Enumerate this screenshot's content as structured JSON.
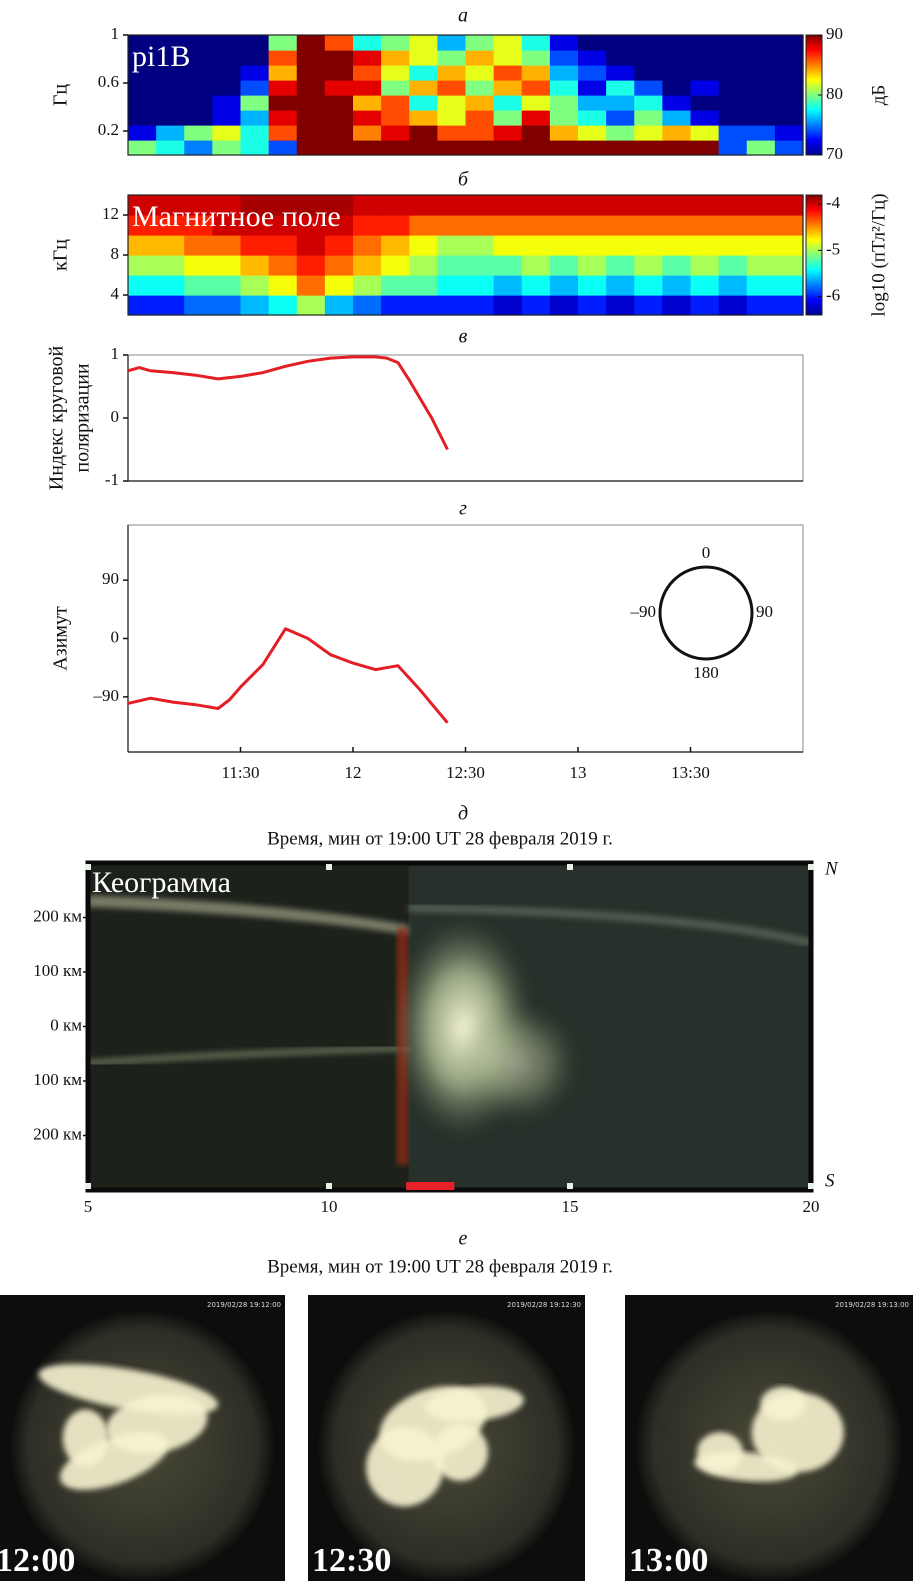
{
  "chart_data": [
    {
      "type": "heatmap",
      "panel_label": "а",
      "annotation": "pi1B",
      "ylabel": "Гц",
      "colorbar_label": "дБ",
      "colormap": "jet",
      "xlim": [
        11,
        14
      ],
      "ylim": [
        0,
        1
      ],
      "yticks": [
        0.2,
        0.6,
        1
      ],
      "clim": [
        70,
        90
      ],
      "cticks": [
        70,
        80,
        90
      ],
      "z": [
        [
          80,
          78,
          75,
          80,
          78,
          74,
          90,
          90,
          90,
          90,
          90,
          90,
          90,
          90,
          90,
          90,
          90,
          90,
          90,
          90,
          90,
          74,
          80,
          74
        ],
        [
          72,
          76,
          80,
          82,
          78,
          86,
          90,
          90,
          85,
          88,
          90,
          86,
          86,
          88,
          90,
          84,
          82,
          80,
          82,
          84,
          82,
          74,
          74,
          72
        ],
        [
          70,
          70,
          70,
          72,
          76,
          88,
          90,
          90,
          88,
          86,
          84,
          82,
          86,
          80,
          88,
          80,
          78,
          74,
          80,
          76,
          72,
          70,
          70,
          70
        ],
        [
          70,
          70,
          70,
          72,
          80,
          90,
          90,
          90,
          84,
          86,
          78,
          82,
          84,
          78,
          82,
          80,
          76,
          76,
          78,
          72,
          70,
          70,
          70,
          70
        ],
        [
          70,
          70,
          70,
          70,
          74,
          88,
          90,
          88,
          88,
          80,
          84,
          86,
          80,
          84,
          86,
          78,
          72,
          78,
          74,
          70,
          72,
          70,
          70,
          70
        ],
        [
          70,
          70,
          70,
          70,
          72,
          84,
          90,
          90,
          86,
          82,
          78,
          84,
          82,
          86,
          84,
          76,
          74,
          72,
          70,
          70,
          70,
          70,
          70,
          70
        ],
        [
          70,
          70,
          70,
          70,
          70,
          86,
          90,
          90,
          88,
          84,
          82,
          80,
          84,
          82,
          80,
          74,
          72,
          70,
          70,
          70,
          70,
          70,
          70,
          70
        ],
        [
          70,
          70,
          70,
          70,
          70,
          80,
          90,
          86,
          78,
          80,
          82,
          76,
          80,
          82,
          78,
          72,
          70,
          70,
          70,
          70,
          70,
          70,
          70,
          70
        ]
      ]
    },
    {
      "type": "heatmap",
      "panel_label": "б",
      "annotation": "Магнитное поле",
      "ylabel": "кГц",
      "colorbar_label": "log10 (пТл²/Гц)",
      "colormap": "jet",
      "xlim": [
        11,
        14
      ],
      "ylim": [
        2,
        14
      ],
      "yticks": [
        4,
        8,
        12
      ],
      "clim": [
        -6.4,
        -3.8
      ],
      "cticks": [
        -6,
        -5,
        -4
      ],
      "z": [
        [
          -6,
          -6,
          -5.8,
          -5.8,
          -5.6,
          -5.4,
          -5,
          -5.6,
          -5.8,
          -6,
          -6,
          -6,
          -6,
          -6.2,
          -6,
          -6.2,
          -6,
          -6.2,
          -6,
          -6.2,
          -6,
          -6.2,
          -6,
          -6
        ],
        [
          -5.4,
          -5.4,
          -5.2,
          -5.2,
          -5,
          -4.8,
          -4.4,
          -4.8,
          -5,
          -5.2,
          -5.2,
          -5.4,
          -5.4,
          -5.6,
          -5.4,
          -5.6,
          -5.4,
          -5.6,
          -5.4,
          -5.6,
          -5.4,
          -5.6,
          -5.4,
          -5.4
        ],
        [
          -5,
          -5,
          -4.8,
          -4.8,
          -4.6,
          -4.4,
          -4.2,
          -4.4,
          -4.6,
          -4.8,
          -5,
          -5.2,
          -5.2,
          -5.2,
          -5,
          -5.2,
          -5,
          -5.2,
          -5,
          -5.2,
          -5,
          -5.2,
          -5,
          -5
        ],
        [
          -4.6,
          -4.6,
          -4.4,
          -4.4,
          -4.2,
          -4.2,
          -4,
          -4.2,
          -4.4,
          -4.6,
          -4.8,
          -5,
          -5,
          -4.8,
          -4.8,
          -4.8,
          -4.8,
          -4.8,
          -4.8,
          -4.8,
          -4.8,
          -4.8,
          -4.8,
          -4.8
        ],
        [
          -4.2,
          -4.2,
          -4.2,
          -4,
          -4,
          -4,
          -4,
          -4,
          -4.2,
          -4.2,
          -4.4,
          -4.4,
          -4.4,
          -4.4,
          -4.4,
          -4.4,
          -4.4,
          -4.4,
          -4.4,
          -4.4,
          -4.4,
          -4.4,
          -4.4,
          -4.4
        ],
        [
          -4,
          -4,
          -4,
          -4,
          -3.9,
          -3.9,
          -3.9,
          -3.9,
          -4,
          -4,
          -4,
          -4,
          -4,
          -4,
          -4,
          -4,
          -4,
          -4,
          -4,
          -4,
          -4,
          -4,
          -4,
          -4
        ]
      ]
    },
    {
      "type": "line",
      "panel_label": "в",
      "ylabel": [
        "Индекс круговой",
        "поляризации"
      ],
      "color": "#e31e24",
      "xlim": [
        11,
        14
      ],
      "ylim": [
        -1,
        1
      ],
      "yticks": [
        -1,
        0,
        1
      ],
      "x": [
        11,
        11.05,
        11.1,
        11.2,
        11.3,
        11.4,
        11.5,
        11.6,
        11.7,
        11.8,
        11.9,
        12.0,
        12.1,
        12.15,
        12.2,
        12.25,
        12.3,
        12.35,
        12.42
      ],
      "values": [
        0.75,
        0.8,
        0.75,
        0.72,
        0.68,
        0.62,
        0.66,
        0.72,
        0.82,
        0.9,
        0.95,
        0.97,
        0.97,
        0.95,
        0.88,
        0.6,
        0.3,
        0.0,
        -0.5
      ]
    },
    {
      "type": "line",
      "panel_label": "г",
      "ylabel": "Азимут",
      "color": "#e31e24",
      "xlim": [
        11,
        14
      ],
      "ylim": [
        -175,
        175
      ],
      "yticks": [
        {
          "value": -90,
          "label": "–90"
        },
        0,
        90
      ],
      "xticks": [
        {
          "value": 11.5,
          "label": "11:30"
        },
        12,
        {
          "value": 12.5,
          "label": "12:30"
        },
        13,
        {
          "value": 13.5,
          "label": "13:30"
        }
      ],
      "xlabel": "Время, мин от 19:00 UT 28 февраля 2019 г.",
      "inset_labels": [
        "0",
        "90",
        "180",
        "–90"
      ],
      "x": [
        11,
        11.1,
        11.2,
        11.3,
        11.4,
        11.45,
        11.5,
        11.6,
        11.7,
        11.8,
        11.9,
        12.0,
        12.1,
        12.2,
        12.3,
        12.42
      ],
      "values": [
        -100,
        -92,
        -98,
        -102,
        -108,
        -95,
        -75,
        -40,
        15,
        0,
        -25,
        -38,
        -48,
        -42,
        -80,
        -130
      ]
    },
    {
      "type": "keogram",
      "panel_label": "д",
      "annotation": "Кеограмма",
      "xlim": [
        5,
        20
      ],
      "ylim": [
        -300,
        300
      ],
      "xticks": [
        5,
        10,
        15,
        20
      ],
      "yticks": [
        {
          "value": 200,
          "label": "200 км"
        },
        {
          "value": 100,
          "label": "100 км"
        },
        {
          "value": 0,
          "label": "0 км"
        },
        {
          "value": -100,
          "label": "100 км"
        },
        {
          "value": -200,
          "label": "200 км"
        }
      ],
      "north_label": "N",
      "south_label": "S",
      "highlight": [
        11.6,
        12.6
      ],
      "highlight_color": "#e8202a",
      "xlabel": "Время, мин от 19:00 UT 28 февраля 2019 г."
    },
    {
      "type": "images",
      "panel_label": "е",
      "captions": [
        "12:00",
        "12:30",
        "13:00"
      ],
      "stamps": [
        "2019/02/28 19:12:00",
        "2019/02/28 19:12:30",
        "2019/02/28 19:13:00"
      ]
    }
  ]
}
